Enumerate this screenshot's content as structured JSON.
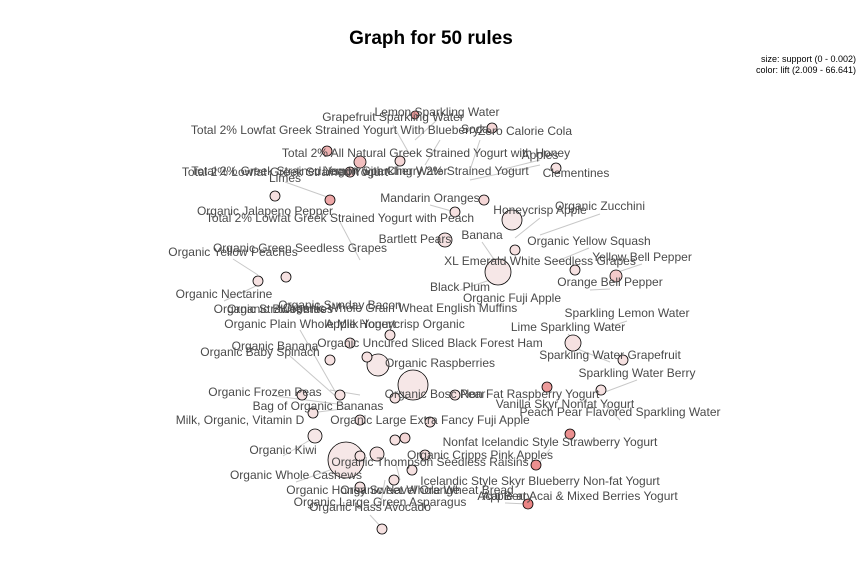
{
  "title": "Graph for 50 rules",
  "legend": {
    "size": "size: support (0 - 0.002)",
    "color": "color: lift (2.009 - 66.641)"
  },
  "colors": {
    "edge": "#c8c8c8",
    "node_stroke": "#000000",
    "rule_low": "#f7eded",
    "rule_high": "#e87878",
    "label": "#4a4a4a"
  },
  "chart_data": {
    "type": "network",
    "items": [
      "Grapefruit Sparkling Water",
      "Lemon Sparkling Water",
      "Total 2% Lowfat Greek Strained Yogurt With Blueberry",
      "Soda",
      "Zero Calorie Cola",
      "Total 2% All Natural Greek Strained Yogurt with Honey",
      "Apples",
      "Total 2% Greek Strained Yogurt with Cherry 2% Strained Yogurt",
      "Total 2% Lowfat Greek Strained Yogurt",
      "Lemon Sparkling Water",
      "Limes",
      "Clementines",
      "Mandarin Oranges",
      "Honeycrisp Apple",
      "Organic Zucchini",
      "Organic Jalapeno Pepper",
      "Total 2% Lowfat Greek Strained Yogurt with Peach",
      "Bartlett Pears",
      "Banana",
      "Organic Yellow Squash",
      "Organic Green Seedless Grapes",
      "Organic Yellow Peaches",
      "XL Emerald White Seedless Grapes",
      "Yellow Bell Pepper",
      "Orange Bell Pepper",
      "Black Plum",
      "Organic Nectarine",
      "Organic Fuji Apple",
      "Organic Strawberries",
      "Organic Blueberries",
      "Organic Sunday Bacon",
      "Organic Whole Grain Wheat English Muffins",
      "Sparkling Lemon Water",
      "Organic Plain Whole Milk Yogurt",
      "Apple Honeycrisp Organic",
      "Lime Sparkling Water",
      "Organic Banana",
      "Organic Uncured Sliced Black Forest Ham",
      "Organic Baby Spinach",
      "Sparkling Water Grapefruit",
      "Organic Raspberries",
      "Sparkling Water Berry",
      "Organic Frozen Peas",
      "Organic Bosc Pear",
      "Non Fat Raspberry Yogurt",
      "Bag of Organic Bananas",
      "Vanilla Skyr Nonfat Yogurt",
      "Peach Pear Flavored Sparkling Water",
      "Milk, Organic, Vitamin D",
      "Organic Large Extra Fancy Fuji Apple",
      "Nonfat Icelandic Style Strawberry Yogurt",
      "Organic Kiwi",
      "Organic Cripps Pink Apples",
      "Organic Thompson Seedless Raisins",
      "Organic Whole Cashews",
      "Icelandic Style Skyr Blueberry Non-fat Yogurt",
      "Organic Honey Sweet Whole Wheat Bread",
      "Organic Navel Orange",
      "Acai Berry",
      "Apple at Acai & Mixed Berries Yogurt",
      "Organic Large Green Asparagus",
      "Organic Hass Avocado"
    ]
  }
}
